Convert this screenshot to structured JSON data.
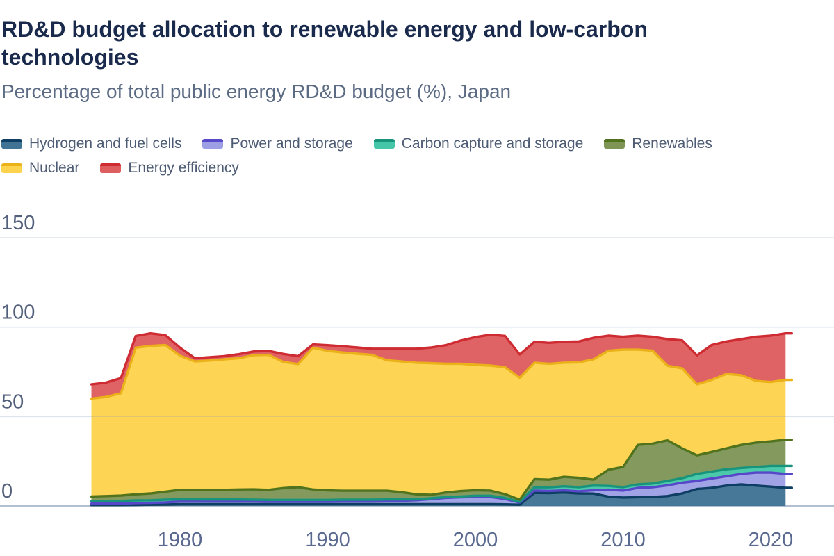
{
  "header": {
    "title": "RD&D budget allocation to renewable energy and low-carbon technologies",
    "subtitle": "Percentage of total public energy RD&D budget (%), Japan"
  },
  "colors": {
    "title": "#1a2a4c",
    "subtitle": "#5c6b84",
    "legend_text": "#4d5c74",
    "y_tick_text": "#52607c",
    "x_tick_text": "#5a6990",
    "gridline": "#dde3ed",
    "zero_axis_line": "#b2bfd3"
  },
  "chart_data": {
    "type": "area",
    "stacked": true,
    "title": "RD&D budget allocation to renewable energy and low-carbon technologies",
    "subtitle": "Percentage of total public energy RD&D budget (%), Japan",
    "xlabel": "",
    "ylabel": "Percentage of total public energy RD&D budget (%)",
    "xlim": [
      1974,
      2021
    ],
    "ylim": [
      0,
      150
    ],
    "y_ticks": [
      0,
      50,
      100,
      150
    ],
    "x_ticks": [
      1980,
      1990,
      2000,
      2010,
      2020
    ],
    "grid": true,
    "legend_position": "top",
    "x": [
      1974,
      1975,
      1976,
      1977,
      1978,
      1979,
      1980,
      1981,
      1982,
      1983,
      1984,
      1985,
      1986,
      1987,
      1988,
      1989,
      1990,
      1991,
      1992,
      1993,
      1994,
      1995,
      1996,
      1997,
      1998,
      1999,
      2000,
      2001,
      2002,
      2003,
      2004,
      2005,
      2006,
      2007,
      2008,
      2009,
      2010,
      2011,
      2012,
      2013,
      2014,
      2015,
      2016,
      2017,
      2018,
      2019,
      2020,
      2021
    ],
    "series": [
      {
        "name": "Hydrogen and fuel cells",
        "slug": "hydrogen-and-fuel-cells",
        "fill": "#407394",
        "stroke": "#0e3e63",
        "values": [
          0.5,
          0.5,
          0.5,
          0.6,
          0.7,
          0.8,
          1,
          1,
          1,
          1,
          1,
          1,
          1,
          1,
          1,
          1,
          1,
          1,
          1,
          1,
          1,
          1,
          1,
          1,
          1,
          1,
          1,
          1,
          0.9,
          0.7,
          7.3,
          7.2,
          7.5,
          7.0,
          6.9,
          5.2,
          4.7,
          4.9,
          5.0,
          5.5,
          7.0,
          9.5,
          10.1,
          11.4,
          12.1,
          11.4,
          10.8,
          10.1
        ]
      },
      {
        "name": "Power and storage",
        "slug": "power-and-storage",
        "fill": "#9c9fe4",
        "stroke": "#5747c9",
        "values": [
          0.8,
          0.8,
          0.8,
          1.0,
          1.0,
          1.2,
          1.5,
          1.5,
          1.5,
          1.5,
          1.5,
          1.5,
          1.4,
          1.4,
          1.4,
          1.4,
          1.4,
          1.5,
          1.5,
          1.5,
          1.6,
          1.9,
          2.2,
          2.8,
          3.5,
          3.8,
          4.0,
          4.0,
          3.0,
          1.2,
          1.3,
          1.2,
          1.2,
          1.2,
          1.9,
          3.9,
          3.9,
          5.2,
          5.5,
          6.0,
          6.0,
          4.5,
          5.2,
          5.2,
          5.8,
          7.2,
          7.8,
          7.8
        ]
      },
      {
        "name": "Carbon capture and storage",
        "slug": "carbon-capture-and-storage",
        "fill": "#45c6a8",
        "stroke": "#18947d",
        "values": [
          1.5,
          1.5,
          1.5,
          1.5,
          1.5,
          1.5,
          1.2,
          1.2,
          1.1,
          1.1,
          1.1,
          1.0,
          1.0,
          1.0,
          1.0,
          1.0,
          1.0,
          1.0,
          1.0,
          1.0,
          1.0,
          0.8,
          0.5,
          0.5,
          0.4,
          0.5,
          0.7,
          0.7,
          0.6,
          0.4,
          1.9,
          2.0,
          2.3,
          2.3,
          2.6,
          2.1,
          1.9,
          2.0,
          2.0,
          2.5,
          2.5,
          3.9,
          3.9,
          3.9,
          3.3,
          3.2,
          3.8,
          4.5
        ]
      },
      {
        "name": "Renewables",
        "slug": "renewables",
        "fill": "#7e9556",
        "stroke": "#51731d",
        "values": [
          2.5,
          2.7,
          3.0,
          3.4,
          3.8,
          4.5,
          5.3,
          5.3,
          5.4,
          5.4,
          5.6,
          5.8,
          5.6,
          6.6,
          7.1,
          5.8,
          5.3,
          5.0,
          5.0,
          5.0,
          4.9,
          4.0,
          2.8,
          1.9,
          2.6,
          3.0,
          3.1,
          2.9,
          2.1,
          1.2,
          4.5,
          4.3,
          5.3,
          5.2,
          3.3,
          9.0,
          11.3,
          22.0,
          22.3,
          22.7,
          16.7,
          10.4,
          11.0,
          11.7,
          12.9,
          13.6,
          13.7,
          14.6
        ]
      },
      {
        "name": "Nuclear",
        "slug": "nuclear",
        "fill": "#fdd24d",
        "stroke": "#eab119",
        "values": [
          54.7,
          55.5,
          57.2,
          82.0,
          82.5,
          82.0,
          75.0,
          71.8,
          72.3,
          73.0,
          73.4,
          75.0,
          75.5,
          70.5,
          68.8,
          79.3,
          78.0,
          77.3,
          76.6,
          76.0,
          73.0,
          73.1,
          73.6,
          73.6,
          72.0,
          71.2,
          70.1,
          69.9,
          71.0,
          68.2,
          65.1,
          64.8,
          63.8,
          64.6,
          67.3,
          66.6,
          65.6,
          53.3,
          52.0,
          41.7,
          44.8,
          39.7,
          40.3,
          41.6,
          39.0,
          34.5,
          33.2,
          33.5
        ]
      },
      {
        "name": "Energy efficiency",
        "slug": "energy-efficiency",
        "fill": "#de5d5e",
        "stroke": "#ce2b32",
        "values": [
          8.0,
          8.0,
          8.5,
          6.5,
          7.0,
          5.5,
          4.5,
          1.8,
          1.9,
          1.8,
          2.3,
          2.1,
          2.2,
          4.5,
          4.5,
          1.8,
          3.2,
          3.5,
          3.5,
          3.4,
          6.4,
          7.1,
          7.8,
          8.8,
          10.4,
          13.0,
          15.5,
          17.2,
          17.5,
          13.0,
          11.7,
          11.7,
          11.7,
          11.7,
          12.0,
          8.4,
          7.2,
          7.8,
          7.8,
          14.9,
          15.6,
          16.2,
          19.5,
          18.2,
          20.2,
          24.7,
          25.9,
          26.0
        ]
      }
    ]
  }
}
